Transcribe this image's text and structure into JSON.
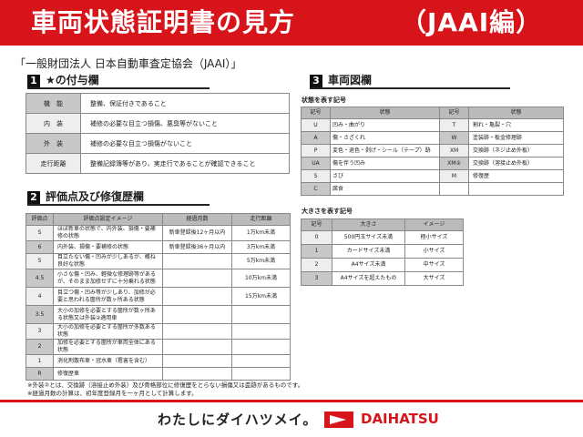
{
  "header": {
    "title": "車両状態証明書の見方",
    "edition": "（JAAI編）"
  },
  "org": "「一般財団法人 日本自動車査定協会（JAAI）」",
  "section1": {
    "num": "1",
    "title": "★の付与欄",
    "rows": [
      {
        "label": "機　能",
        "text": "整備、保証付きであること"
      },
      {
        "label": "内　装",
        "text": "補修の必要な目立つ損傷、悪臭等がないこと"
      },
      {
        "label": "外　装",
        "text": "補修の必要な目立つ損傷がないこと"
      },
      {
        "label": "走行距離",
        "text": "整備記録簿等があり、実走行であることが確認できること"
      }
    ]
  },
  "section2": {
    "num": "2",
    "title": "評価点及び修復歴欄",
    "headers": [
      "評価点",
      "評価点設定イメージ",
      "経過月数",
      "走行距離"
    ],
    "rows": [
      [
        "S",
        "ほぼ新車の状態で、内外装、損傷・要補修の状態",
        "新車登録後12ヶ月以内",
        "1万km未満"
      ],
      [
        "6",
        "内外装、損傷・要補修の状態",
        "新車登録後36ヶ月以内",
        "3万km未満"
      ],
      [
        "5",
        "目立たない傷・凹みが少しあるが、概ね良好な状態",
        "",
        "5万km未満"
      ],
      [
        "4.5",
        "小さな傷・凹み、軽微な修理跡等があるが、そのまま加修せずに十分乗れる状態",
        "",
        "10万km未満"
      ],
      [
        "4",
        "目立つ傷・凹み等が少しあり、加修が必要と思われる箇所が数ヶ所ある状態",
        "",
        "15万km未満"
      ],
      [
        "3.5",
        "大小の加修を必要とする箇所が数ヶ所ある状態又は外装②適用車",
        "",
        ""
      ],
      [
        "3",
        "大小の加修を必要とする箇所が多数ある状態",
        "",
        ""
      ],
      [
        "2",
        "加修を必要とする箇所が車両全体にある状態",
        "",
        ""
      ],
      [
        "1",
        "消化剤散布車・冠水車（雹害を含む）",
        "",
        ""
      ],
      [
        "R",
        "修復歴車",
        "",
        ""
      ]
    ]
  },
  "notes": [
    "※外装②とは、交換跡（溶接止め外装）及び骨格部位に修復歴をとらない損傷又は歪跡があるものです。",
    "※経過月数の計算は、初年度登録月を一ヶ月として計算します。"
  ],
  "section3": {
    "num": "3",
    "title": "車両図欄",
    "cond_caption": "状態を表す記号",
    "cond_headers": [
      "記号",
      "状態",
      "記号",
      "状態"
    ],
    "cond_rows": [
      [
        "U",
        "凹み・曲がり",
        "T",
        "割れ・亀裂・穴"
      ],
      [
        "A",
        "傷・さざくれ",
        "W",
        "塗装跡・板金修理跡"
      ],
      [
        "P",
        "変色・退色・剥げ・シール（テープ）跡",
        "XM",
        "交換跡（ネジ止め外板）"
      ],
      [
        "UA",
        "傷を伴う凹み",
        "XM②",
        "交換跡（溶接止め外板）"
      ],
      [
        "S",
        "さび",
        "M",
        "修復歴"
      ],
      [
        "C",
        "腐食",
        "",
        ""
      ]
    ],
    "size_caption": "大きさを表す記号",
    "size_headers": [
      "記号",
      "大きさ",
      "イメージ"
    ],
    "size_rows": [
      [
        "0",
        "500円玉サイズ未満",
        "極小サイズ"
      ],
      [
        "1",
        "カードサイズ未満",
        "小サイズ"
      ],
      [
        "2",
        "A4サイズ未満",
        "中サイズ"
      ],
      [
        "3",
        "A4サイズを超えたもの",
        "大サイズ"
      ]
    ]
  },
  "footer": {
    "slogan": "わたしにダイハツメイ。",
    "brand": "DAIHATSU"
  },
  "colors": {
    "brand_red": "#d7141a"
  }
}
